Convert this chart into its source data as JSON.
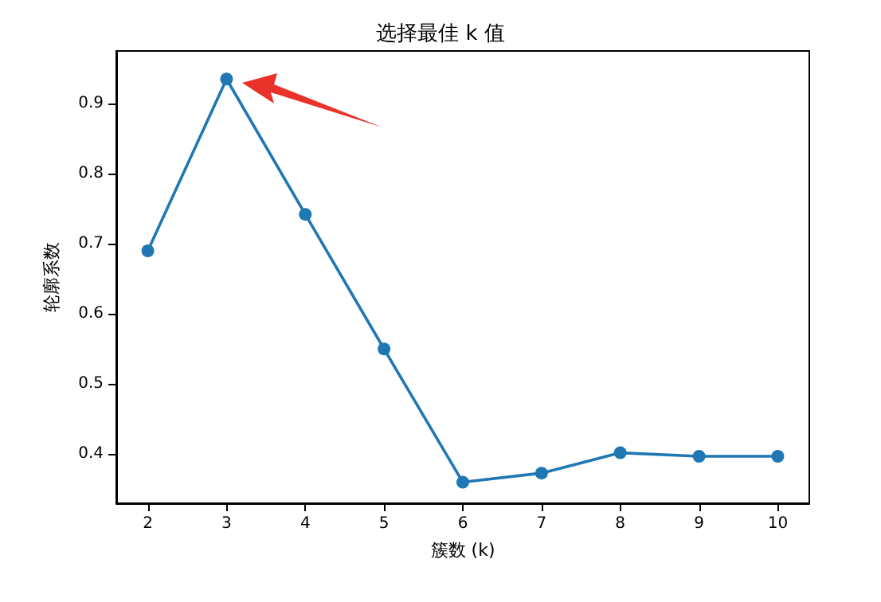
{
  "chart_data": {
    "type": "line",
    "title": "选择最佳 k 值",
    "xlabel": "簇数 (k)",
    "ylabel": "轮廓系数",
    "x": [
      2,
      3,
      4,
      5,
      6,
      7,
      8,
      9,
      10
    ],
    "series": [
      {
        "color": "#1f77b4",
        "values": [
          0.69,
          0.935,
          0.742,
          0.55,
          0.36,
          0.373,
          0.402,
          0.397,
          0.397
        ]
      }
    ],
    "xlim": [
      1.6,
      10.4
    ],
    "xticks": [
      2,
      3,
      4,
      5,
      6,
      7,
      8,
      9,
      10
    ],
    "ylim": [
      0.33,
      0.975
    ],
    "yticks": [
      0.4,
      0.5,
      0.6,
      0.7,
      0.8,
      0.9
    ],
    "grid": false,
    "marker": "circle",
    "line_style": "solid"
  }
}
